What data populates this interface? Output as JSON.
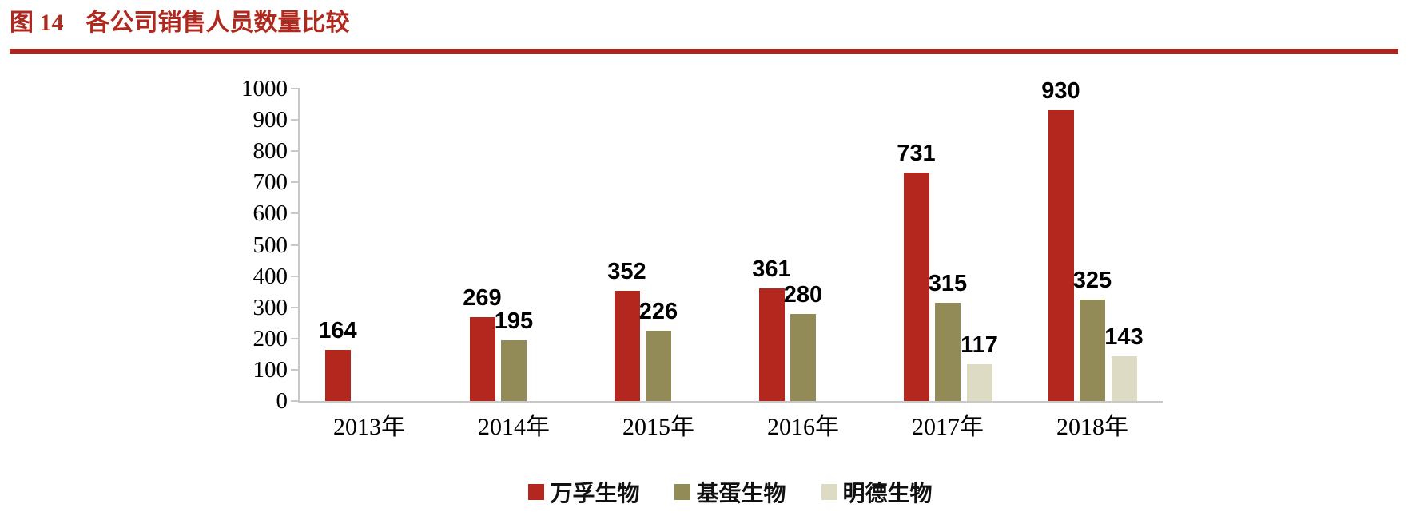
{
  "header": {
    "figure_label": "图 14",
    "title": "各公司销售人员数量比较",
    "accent_color": "#AF291E",
    "rule_color": "#B2251C"
  },
  "chart_data": {
    "type": "bar",
    "title": "各公司销售人员数量比较",
    "categories": [
      "2013年",
      "2014年",
      "2015年",
      "2016年",
      "2017年",
      "2018年"
    ],
    "series": [
      {
        "name": "万孚生物",
        "color": "#B3271E",
        "values": [
          164,
          269,
          352,
          361,
          731,
          930
        ]
      },
      {
        "name": "基蛋生物",
        "color": "#928B57",
        "values": [
          null,
          195,
          226,
          280,
          315,
          325
        ]
      },
      {
        "name": "明德生物",
        "color": "#DDDBC4",
        "values": [
          null,
          null,
          null,
          null,
          117,
          143
        ]
      }
    ],
    "xlabel": "",
    "ylabel": "",
    "ylim": [
      0,
      1000
    ],
    "ytick_step": 100,
    "yticks": [
      0,
      100,
      200,
      300,
      400,
      500,
      600,
      700,
      800,
      900,
      1000
    ],
    "grid": false,
    "legend_position": "bottom",
    "axis_color": "#C8C8C8",
    "text_color": "#000000",
    "background": "#FFFFFF",
    "data_labels_shown": true
  }
}
